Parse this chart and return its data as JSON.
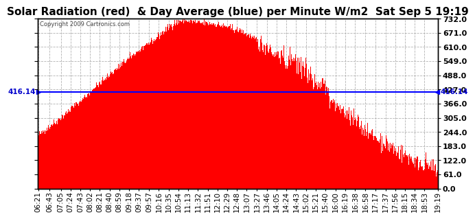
{
  "title": "Solar Radiation (red)  & Day Average (blue) per Minute W/m2  Sat Sep 5 19:19",
  "copyright": "Copyright 2009 Cartronics.com",
  "y_ticks": [
    0.0,
    61.0,
    122.0,
    183.0,
    244.0,
    305.0,
    366.0,
    427.0,
    488.0,
    549.0,
    610.0,
    671.0,
    732.0
  ],
  "y_min": 0.0,
  "y_max": 732.0,
  "day_average": 416.14,
  "x_labels": [
    "06:21",
    "06:43",
    "07:05",
    "07:24",
    "07:43",
    "08:02",
    "08:21",
    "08:40",
    "08:59",
    "09:18",
    "09:37",
    "09:57",
    "10:16",
    "10:35",
    "10:54",
    "11:13",
    "11:32",
    "11:51",
    "12:10",
    "12:29",
    "12:48",
    "13:07",
    "13:27",
    "13:46",
    "14:05",
    "14:24",
    "14:43",
    "15:02",
    "15:21",
    "15:40",
    "16:00",
    "16:19",
    "16:38",
    "16:58",
    "17:17",
    "17:37",
    "17:56",
    "18:15",
    "18:34",
    "18:53",
    "19:19"
  ],
  "background_color": "#ffffff",
  "plot_bg_color": "#ffffff",
  "grid_color": "#aaaaaa",
  "fill_color": "#ff0000",
  "line_color": "#0000ff",
  "left_label_color": "#0000cc",
  "title_fontsize": 11,
  "tick_fontsize": 7.5,
  "n_minutes": 778
}
